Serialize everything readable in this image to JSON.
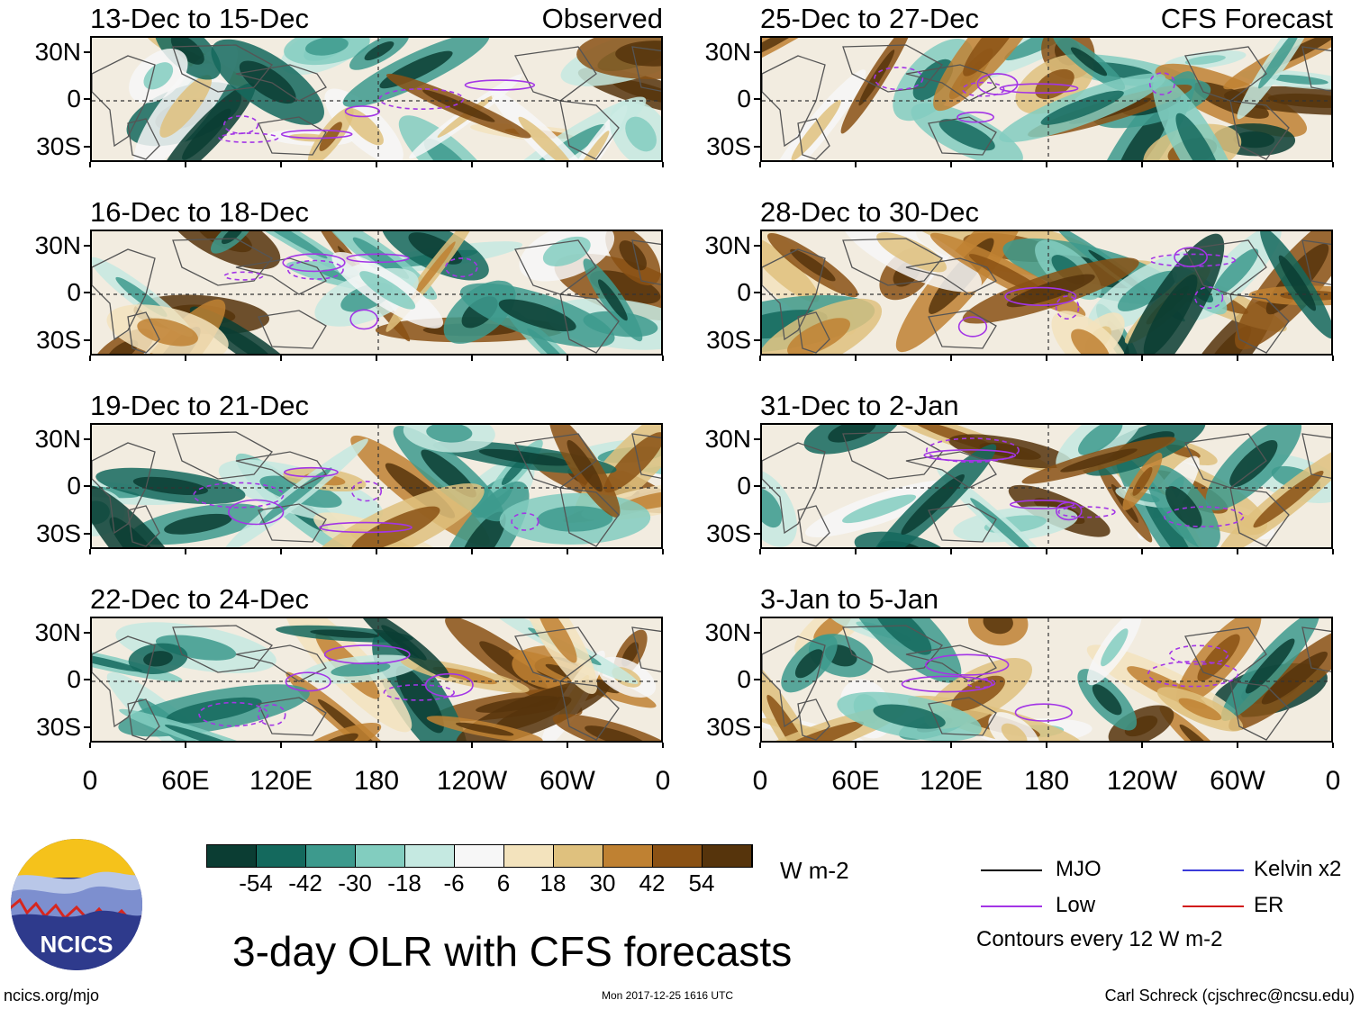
{
  "figure_title": "3-day OLR with CFS forecasts",
  "units": "W m-2",
  "site": "ncics.org/mjo",
  "logo_text": "NCICS",
  "timestamp": "Mon 2017-12-25 1616 UTC",
  "author": "Carl Schreck (cjschrec@ncsu.edu)",
  "left_column_label": "Observed",
  "right_column_label": "CFS Forecast",
  "contour_note": "Contours every 12 W m-2",
  "legend": [
    {
      "label": "MJO",
      "color": "#000000"
    },
    {
      "label": "Kelvin x2",
      "color": "#3b3bd9"
    },
    {
      "label": "Low",
      "color": "#a335e6"
    },
    {
      "label": "ER",
      "color": "#d11a1a"
    }
  ],
  "chart_data": {
    "type": "heatmap",
    "variable": "3-day OLR anomaly",
    "panels": [
      {
        "title": "13-Dec to 15-Dec",
        "source": "Observed"
      },
      {
        "title": "16-Dec to 18-Dec",
        "source": "Observed"
      },
      {
        "title": "19-Dec to 21-Dec",
        "source": "Observed"
      },
      {
        "title": "22-Dec to 24-Dec",
        "source": "Observed"
      },
      {
        "title": "25-Dec to 27-Dec",
        "source": "CFS Forecast"
      },
      {
        "title": "28-Dec to 30-Dec",
        "source": "CFS Forecast"
      },
      {
        "title": "31-Dec to 2-Jan",
        "source": "CFS Forecast"
      },
      {
        "title": "3-Jan to 5-Jan",
        "source": "CFS Forecast"
      }
    ],
    "x_ticks": [
      "0",
      "60E",
      "120E",
      "180",
      "120W",
      "60W",
      "0"
    ],
    "x_tick_values": [
      0,
      60,
      120,
      180,
      240,
      300,
      360
    ],
    "y_ticks": [
      "30N",
      "0",
      "30S"
    ],
    "y_tick_values": [
      30,
      0,
      -30
    ],
    "xlim": [
      0,
      360
    ],
    "ylim": [
      -40,
      40
    ],
    "colorbar": {
      "levels": [
        "-54",
        "-42",
        "-30",
        "-18",
        "-6",
        "6",
        "18",
        "30",
        "42",
        "54"
      ],
      "colors": [
        "#0b3d33",
        "#14695d",
        "#3d9a8d",
        "#82cdbf",
        "#c5e9e1",
        "#f7f7f7",
        "#f3e3bd",
        "#dfc17e",
        "#bf8132",
        "#8a5114",
        "#56340c"
      ]
    }
  }
}
